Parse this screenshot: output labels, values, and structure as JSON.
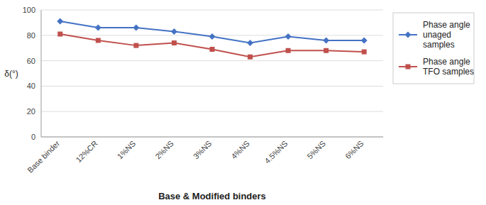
{
  "chart_data": {
    "type": "line",
    "categories": [
      "Base binder",
      "12%CR",
      "1%NS",
      "2%NS",
      "3%NS",
      "4%NS",
      "4.5%NS",
      "5%NS",
      "6%NS"
    ],
    "series": [
      {
        "name": "Phase angle\nunaged\nsamples",
        "color": "#4472C4",
        "marker": "diamond",
        "values": [
          91,
          86,
          86,
          83,
          79,
          74,
          79,
          76,
          76
        ]
      },
      {
        "name": "Phase angle\nTFO samples",
        "color": "#C0504D",
        "marker": "square",
        "values": [
          81,
          76,
          72,
          74,
          69,
          63,
          68,
          68,
          67
        ]
      }
    ],
    "x_label": "Base & Modified binders",
    "y_label": "δ(°)",
    "ylim": [
      0,
      100
    ],
    "yticks": [
      0,
      20,
      40,
      60,
      80,
      100
    ],
    "grid": true,
    "legend": "right"
  }
}
